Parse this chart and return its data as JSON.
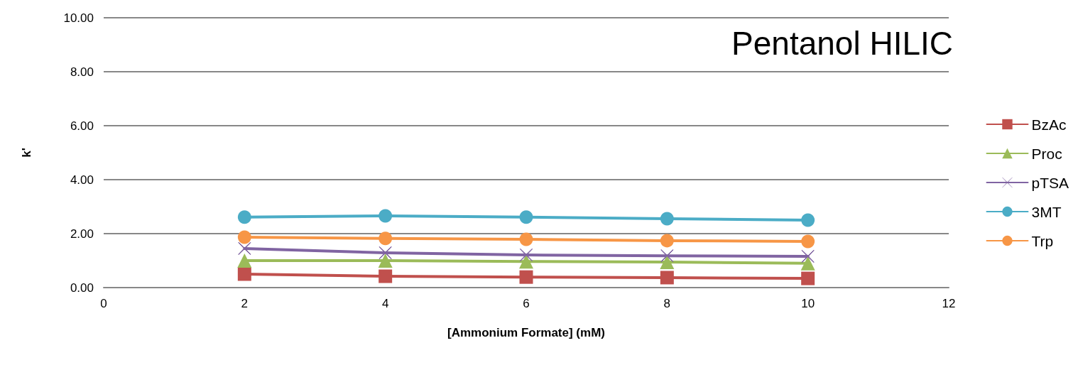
{
  "chart_data": {
    "type": "line",
    "xlabel": "[Ammonium Formate] (mM)",
    "ylabel": "k'",
    "annotations": [
      "Pentanol HILIC"
    ],
    "x": [
      2,
      4,
      6,
      8,
      10
    ],
    "series": [
      {
        "name": "BzAc",
        "color": "#c0504d",
        "marker": "square",
        "values": [
          0.5,
          0.42,
          0.39,
          0.37,
          0.34
        ]
      },
      {
        "name": "Proc",
        "color": "#9bbb59",
        "marker": "triangle",
        "values": [
          1.0,
          1.0,
          0.97,
          0.95,
          0.9
        ]
      },
      {
        "name": "pTSA",
        "color": "#8064a2",
        "marker": "cross",
        "values": [
          1.45,
          1.29,
          1.21,
          1.18,
          1.16
        ]
      },
      {
        "name": "3MT",
        "color": "#4bacc6",
        "marker": "circle",
        "values": [
          2.61,
          2.66,
          2.61,
          2.55,
          2.5
        ]
      },
      {
        "name": "Trp",
        "color": "#f79646",
        "marker": "circle",
        "values": [
          1.87,
          1.82,
          1.79,
          1.74,
          1.71
        ]
      }
    ],
    "xlim": [
      0,
      12
    ],
    "xticks": [
      0,
      2,
      4,
      6,
      8,
      10,
      12
    ],
    "ylim": [
      0,
      10
    ],
    "yticks": [
      {
        "value": 0,
        "label": "0.00"
      },
      {
        "value": 2,
        "label": "2.00"
      },
      {
        "value": 4,
        "label": "4.00"
      },
      {
        "value": 6,
        "label": "6.00"
      },
      {
        "value": 8,
        "label": "8.00"
      },
      {
        "value": 10,
        "label": "10.00"
      }
    ],
    "grid": "y",
    "legend": "right",
    "line_style": "solid"
  }
}
